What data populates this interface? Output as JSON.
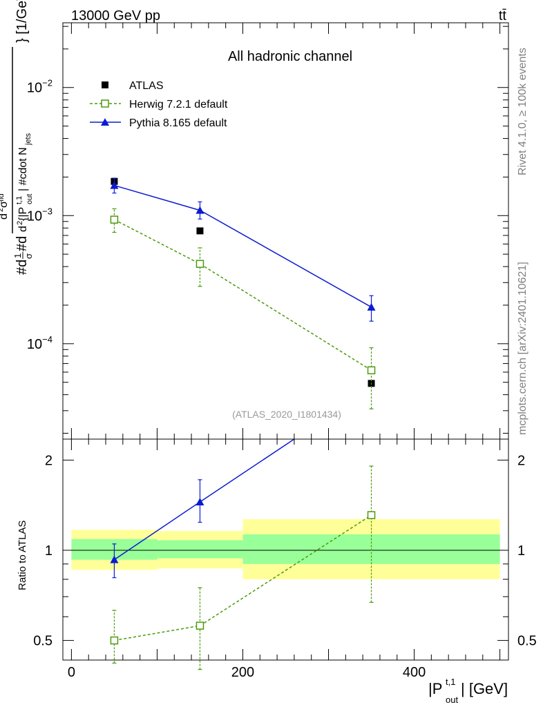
{
  "header": {
    "energy_label": "13000 GeV pp",
    "process_label": "tt̄"
  },
  "side_labels": {
    "rivet": "Rivet 4.1.0, ≥ 100k events",
    "source": "mcplots.cern.ch [arXiv:2401.10621]"
  },
  "chart_data": [
    {
      "type": "scatter",
      "panel": "main",
      "title": "All hadronic channel",
      "analysis_id": "(ATLAS_2020_I1801434)",
      "ylabel": "#d¹⁄σ#d d²σᵗᵈ / d²{|Pₒᵤₜᵗ·¹|} #cdot N_jets } [1/GeV]",
      "yscale": "log",
      "xlim": [
        -10,
        510
      ],
      "ylim": [
        1.8e-05,
        0.032
      ],
      "ytick_labels": [
        {
          "value": 0.01,
          "base": "10",
          "exp": "−2"
        },
        {
          "value": 0.001,
          "base": "10",
          "exp": "−3"
        },
        {
          "value": 0.0001,
          "base": "10",
          "exp": "−4"
        }
      ],
      "legend": {
        "position": "top-left",
        "entries": [
          "ATLAS",
          "Herwig 7.2.1 default",
          "Pythia 8.165 default"
        ]
      },
      "series": [
        {
          "name": "ATLAS",
          "color": "#000000",
          "marker": "filled-square",
          "x": [
            50,
            150,
            350
          ],
          "y": [
            0.00185,
            0.00076,
            4.9e-05
          ]
        },
        {
          "name": "Herwig 7.2.1 default",
          "color": "#4a9a0a",
          "marker": "open-square",
          "line": "dashed",
          "x": [
            50,
            150,
            350
          ],
          "y": [
            0.00093,
            0.00042,
            6.2e-05
          ],
          "yerr_low": [
            0.00074,
            0.00028,
            3.1e-05
          ],
          "yerr_high": [
            0.00113,
            0.00056,
            9.3e-05
          ]
        },
        {
          "name": "Pythia 8.165 default",
          "color": "#0b1bd2",
          "marker": "filled-triangle",
          "line": "solid",
          "x": [
            50,
            150,
            350
          ],
          "y": [
            0.00172,
            0.0011,
            0.000193
          ],
          "yerr_low": [
            0.0015,
            0.00094,
            0.00015
          ],
          "yerr_high": [
            0.00196,
            0.00128,
            0.000237
          ]
        }
      ]
    },
    {
      "type": "line",
      "panel": "ratio",
      "xlabel": "|P_out^t,1| [GeV]",
      "xlabel_main": "|P",
      "xlabel_sub": "out",
      "xlabel_sup": "t,1",
      "xlabel_unit": "| [GeV]",
      "ylabel": "Ratio to ATLAS",
      "yscale": "log",
      "xlim": [
        -10,
        510
      ],
      "ylim": [
        0.43,
        2.35
      ],
      "xtick_labels": [
        {
          "value": 0,
          "label": "0"
        },
        {
          "value": 200,
          "label": "200"
        },
        {
          "value": 400,
          "label": "400"
        }
      ],
      "ytick_labels": [
        {
          "value": 0.5,
          "label": "0.5"
        },
        {
          "value": 1,
          "label": "1"
        },
        {
          "value": 2,
          "label": "2"
        }
      ],
      "bands": [
        {
          "x0": 0,
          "x1": 100,
          "yellow": [
            0.86,
            1.17
          ],
          "green": [
            0.93,
            1.09
          ]
        },
        {
          "x0": 100,
          "x1": 200,
          "yellow": [
            0.87,
            1.16
          ],
          "green": [
            0.94,
            1.08
          ]
        },
        {
          "x0": 200,
          "x1": 500,
          "yellow": [
            0.8,
            1.27
          ],
          "green": [
            0.9,
            1.13
          ]
        }
      ],
      "series": [
        {
          "name": "Herwig 7.2.1 default",
          "color": "#4a9a0a",
          "marker": "open-square",
          "line": "dashed",
          "x": [
            50,
            150,
            350
          ],
          "y": [
            0.5,
            0.56,
            1.31
          ],
          "yerr_low": [
            0.42,
            0.4,
            0.67
          ],
          "yerr_high": [
            0.63,
            0.75,
            1.91
          ]
        },
        {
          "name": "Pythia 8.165 default",
          "color": "#0b1bd2",
          "marker": "filled-triangle",
          "line": "solid",
          "x": [
            50,
            150,
            260
          ],
          "y": [
            0.93,
            1.45,
            2.35
          ],
          "yerr_low": [
            0.81,
            1.24,
            null
          ],
          "yerr_high": [
            1.05,
            1.72,
            null
          ]
        }
      ]
    }
  ]
}
